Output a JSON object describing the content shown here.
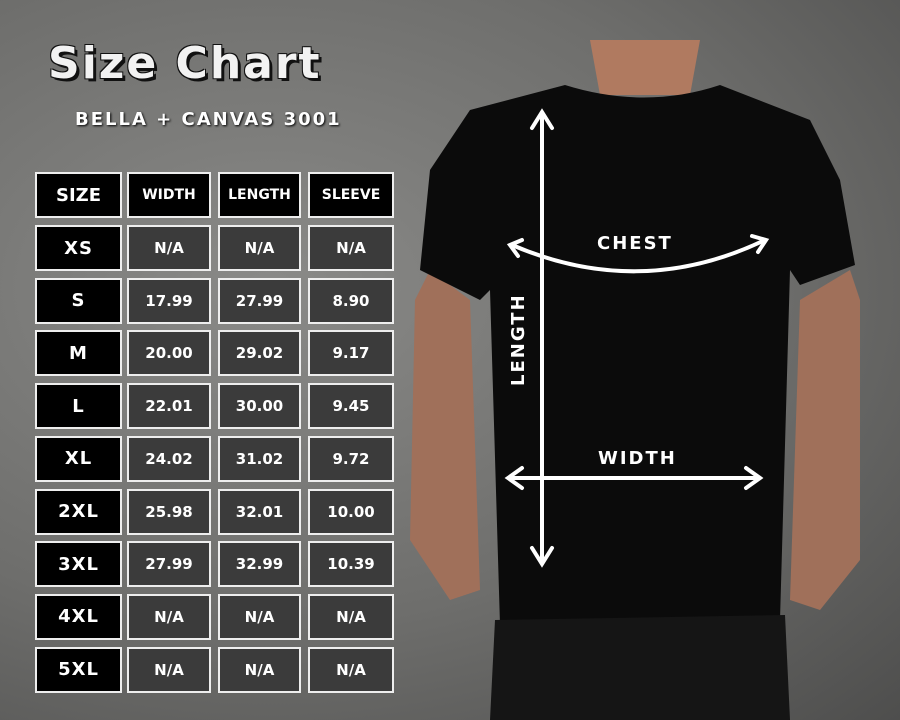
{
  "title": "Size Chart",
  "subtitle": "BELLA + CANVAS 3001",
  "table": {
    "headers": [
      "SIZE",
      "WIDTH",
      "LENGTH",
      "SLEEVE"
    ],
    "rows": [
      [
        "XS",
        "N/A",
        "N/A",
        "N/A"
      ],
      [
        "S",
        "17.99",
        "27.99",
        "8.90"
      ],
      [
        "M",
        "20.00",
        "29.02",
        "9.17"
      ],
      [
        "L",
        "22.01",
        "30.00",
        "9.45"
      ],
      [
        "XL",
        "24.02",
        "31.02",
        "9.72"
      ],
      [
        "2XL",
        "25.98",
        "32.01",
        "10.00"
      ],
      [
        "3XL",
        "27.99",
        "32.99",
        "10.39"
      ],
      [
        "4XL",
        "N/A",
        "N/A",
        "N/A"
      ],
      [
        "5XL",
        "N/A",
        "N/A",
        "N/A"
      ]
    ]
  },
  "diagram": {
    "chest": "CHEST",
    "width": "WIDTH",
    "length": "LENGTH"
  }
}
